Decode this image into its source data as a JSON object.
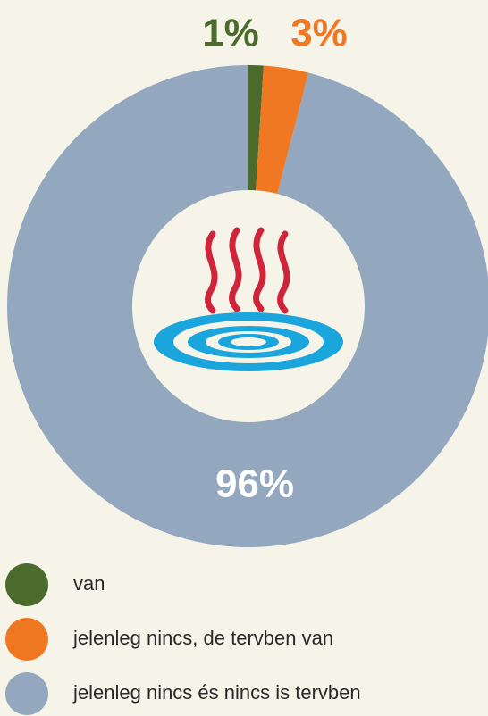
{
  "chart_data": {
    "type": "pie",
    "categories": [
      "van",
      "jelenleg nincs, de tervben van",
      "jelenleg nincs és nincs is tervben"
    ],
    "values": [
      1,
      3,
      96
    ],
    "value_labels": [
      "1%",
      "3%",
      "96%"
    ],
    "colors": [
      "#4a6b2b",
      "#f07822",
      "#93a7bf"
    ]
  }
}
